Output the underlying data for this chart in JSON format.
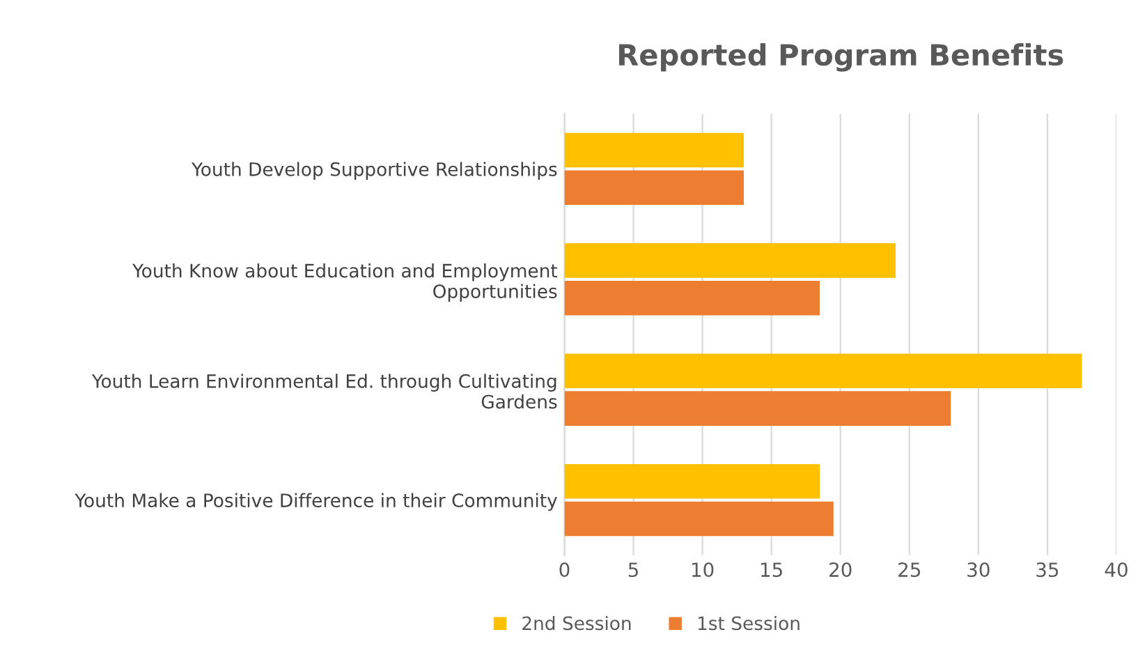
{
  "chart_data": {
    "type": "bar",
    "orientation": "horizontal",
    "title": "Reported Program Benefits",
    "categories": [
      "Youth Develop Supportive Relationships",
      "Youth Know about Education and Employment\nOpportunities",
      "Youth Learn Environmental Ed. through Cultivating\nGardens",
      "Youth Make a Positive Difference in their Community"
    ],
    "series": [
      {
        "name": "2nd Session",
        "color": "#ffc000",
        "values": [
          13,
          24,
          37.5,
          18.5
        ]
      },
      {
        "name": "1st Session",
        "color": "#ed7d31",
        "values": [
          13,
          18.5,
          28,
          19.5
        ]
      }
    ],
    "xlim": [
      0,
      40
    ],
    "xticks": [
      0,
      5,
      10,
      15,
      20,
      25,
      30,
      35,
      40
    ],
    "grid": "x",
    "legend": "bottom"
  }
}
